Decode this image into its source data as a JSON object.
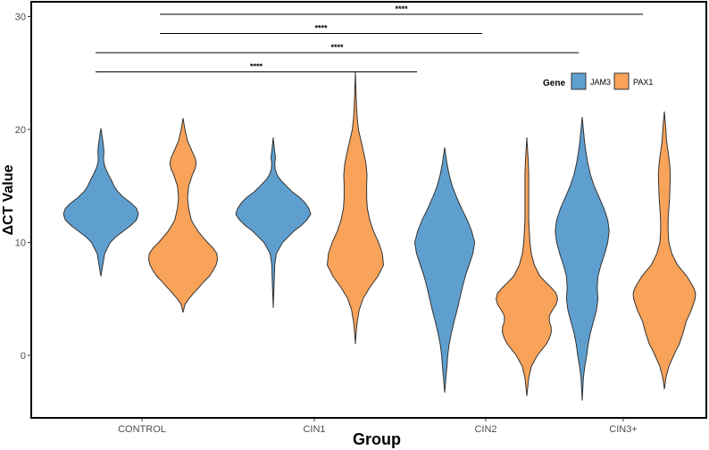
{
  "chart_data": {
    "type": "violin",
    "xlabel": "Group",
    "ylabel": "ΔCT   Value",
    "categories": [
      "CONTROL",
      "CIN1",
      "CIN2",
      "CIN3+"
    ],
    "y_ticks": [
      0,
      10,
      20,
      30
    ],
    "ylim": [
      -5.5,
      31
    ],
    "grid": false,
    "legend": {
      "title": "Gene",
      "position": "top-right"
    },
    "series": [
      {
        "name": "JAM3",
        "color": "#5F9FCF",
        "violins": [
          {
            "category": "CONTROL",
            "min": 7.0,
            "max": 20.1,
            "density": [
              [
                7.0,
                0
              ],
              [
                8.0,
                0.05
              ],
              [
                9.0,
                0.1
              ],
              [
                10.0,
                0.25
              ],
              [
                10.5,
                0.4
              ],
              [
                11.0,
                0.6
              ],
              [
                11.5,
                0.8
              ],
              [
                12.0,
                0.95
              ],
              [
                12.5,
                1.0
              ],
              [
                13.0,
                0.95
              ],
              [
                13.5,
                0.8
              ],
              [
                14.0,
                0.6
              ],
              [
                14.5,
                0.45
              ],
              [
                15.0,
                0.35
              ],
              [
                15.5,
                0.28
              ],
              [
                16.0,
                0.2
              ],
              [
                16.5,
                0.13
              ],
              [
                17.0,
                0.08
              ],
              [
                17.5,
                0.07
              ],
              [
                18.0,
                0.08
              ],
              [
                18.5,
                0.07
              ],
              [
                19.0,
                0.05
              ],
              [
                20.1,
                0
              ]
            ]
          },
          {
            "category": "CIN1",
            "min": 4.2,
            "max": 19.3,
            "density": [
              [
                4.2,
                0
              ],
              [
                6.0,
                0.02
              ],
              [
                8.0,
                0.04
              ],
              [
                9.0,
                0.08
              ],
              [
                10.0,
                0.25
              ],
              [
                10.5,
                0.4
              ],
              [
                11.0,
                0.55
              ],
              [
                11.5,
                0.75
              ],
              [
                12.0,
                0.9
              ],
              [
                12.5,
                1.0
              ],
              [
                13.0,
                0.95
              ],
              [
                13.5,
                0.85
              ],
              [
                14.0,
                0.7
              ],
              [
                14.5,
                0.5
              ],
              [
                15.0,
                0.35
              ],
              [
                15.5,
                0.2
              ],
              [
                16.0,
                0.1
              ],
              [
                16.5,
                0.05
              ],
              [
                17.0,
                0.04
              ],
              [
                17.5,
                0.06
              ],
              [
                18.0,
                0.04
              ],
              [
                19.3,
                0
              ]
            ]
          },
          {
            "category": "CIN2",
            "min": -3.3,
            "max": 18.4,
            "density": [
              [
                -3.3,
                0
              ],
              [
                -2.0,
                0.03
              ],
              [
                -1.0,
                0.06
              ],
              [
                0.0,
                0.08
              ],
              [
                1.0,
                0.12
              ],
              [
                2.0,
                0.18
              ],
              [
                3.0,
                0.25
              ],
              [
                4.0,
                0.33
              ],
              [
                5.0,
                0.4
              ],
              [
                6.0,
                0.47
              ],
              [
                7.0,
                0.55
              ],
              [
                8.0,
                0.65
              ],
              [
                9.0,
                0.75
              ],
              [
                10.0,
                0.8
              ],
              [
                11.0,
                0.72
              ],
              [
                12.0,
                0.6
              ],
              [
                13.0,
                0.45
              ],
              [
                14.0,
                0.32
              ],
              [
                15.0,
                0.2
              ],
              [
                16.0,
                0.12
              ],
              [
                17.0,
                0.06
              ],
              [
                18.4,
                0
              ]
            ]
          },
          {
            "category": "CIN3+",
            "min": -4.0,
            "max": 21.1,
            "density": [
              [
                -4.0,
                0
              ],
              [
                -2.0,
                0.03
              ],
              [
                -1.0,
                0.07
              ],
              [
                0.0,
                0.12
              ],
              [
                1.0,
                0.16
              ],
              [
                2.0,
                0.22
              ],
              [
                3.0,
                0.3
              ],
              [
                4.0,
                0.38
              ],
              [
                5.0,
                0.42
              ],
              [
                6.0,
                0.4
              ],
              [
                7.0,
                0.42
              ],
              [
                8.0,
                0.5
              ],
              [
                9.0,
                0.6
              ],
              [
                10.0,
                0.68
              ],
              [
                11.0,
                0.72
              ],
              [
                12.0,
                0.68
              ],
              [
                13.0,
                0.58
              ],
              [
                14.0,
                0.45
              ],
              [
                15.0,
                0.32
              ],
              [
                16.0,
                0.22
              ],
              [
                17.0,
                0.15
              ],
              [
                18.0,
                0.1
              ],
              [
                19.0,
                0.06
              ],
              [
                20.0,
                0.03
              ],
              [
                21.1,
                0
              ]
            ]
          }
        ]
      },
      {
        "name": "PAX1",
        "color": "#F9A35A",
        "violins": [
          {
            "category": "CONTROL",
            "min": 3.8,
            "max": 21.0,
            "density": [
              [
                3.8,
                0
              ],
              [
                4.5,
                0.05
              ],
              [
                5.0,
                0.15
              ],
              [
                5.5,
                0.28
              ],
              [
                6.0,
                0.42
              ],
              [
                6.5,
                0.55
              ],
              [
                7.0,
                0.7
              ],
              [
                7.5,
                0.8
              ],
              [
                8.0,
                0.88
              ],
              [
                8.5,
                0.92
              ],
              [
                9.0,
                0.9
              ],
              [
                9.5,
                0.8
              ],
              [
                10.0,
                0.65
              ],
              [
                10.5,
                0.52
              ],
              [
                11.0,
                0.4
              ],
              [
                11.5,
                0.3
              ],
              [
                12.0,
                0.22
              ],
              [
                13.0,
                0.15
              ],
              [
                14.0,
                0.12
              ],
              [
                15.0,
                0.15
              ],
              [
                16.0,
                0.25
              ],
              [
                16.5,
                0.32
              ],
              [
                17.0,
                0.35
              ],
              [
                17.5,
                0.32
              ],
              [
                18.0,
                0.25
              ],
              [
                19.0,
                0.12
              ],
              [
                20.0,
                0.05
              ],
              [
                21.0,
                0
              ]
            ]
          },
          {
            "category": "CIN1",
            "min": 1.0,
            "max": 25.1,
            "density": [
              [
                1.0,
                0
              ],
              [
                2.0,
                0.02
              ],
              [
                3.0,
                0.05
              ],
              [
                4.0,
                0.1
              ],
              [
                5.0,
                0.2
              ],
              [
                6.0,
                0.38
              ],
              [
                7.0,
                0.6
              ],
              [
                8.0,
                0.75
              ],
              [
                9.0,
                0.72
              ],
              [
                10.0,
                0.62
              ],
              [
                11.0,
                0.48
              ],
              [
                12.0,
                0.38
              ],
              [
                13.0,
                0.32
              ],
              [
                14.0,
                0.3
              ],
              [
                15.0,
                0.3
              ],
              [
                16.0,
                0.31
              ],
              [
                17.0,
                0.28
              ],
              [
                18.0,
                0.22
              ],
              [
                19.0,
                0.15
              ],
              [
                20.0,
                0.08
              ],
              [
                21.0,
                0.05
              ],
              [
                22.0,
                0.03
              ],
              [
                23.0,
                0.02
              ],
              [
                25.1,
                0
              ]
            ]
          },
          {
            "category": "CIN2",
            "min": -3.6,
            "max": 19.3,
            "density": [
              [
                -3.6,
                0
              ],
              [
                -2.0,
                0.05
              ],
              [
                -1.0,
                0.12
              ],
              [
                0.0,
                0.28
              ],
              [
                0.5,
                0.4
              ],
              [
                1.0,
                0.52
              ],
              [
                1.5,
                0.6
              ],
              [
                2.0,
                0.65
              ],
              [
                2.5,
                0.65
              ],
              [
                3.0,
                0.6
              ],
              [
                3.5,
                0.6
              ],
              [
                4.0,
                0.68
              ],
              [
                4.5,
                0.78
              ],
              [
                5.0,
                0.82
              ],
              [
                5.5,
                0.78
              ],
              [
                6.0,
                0.65
              ],
              [
                6.5,
                0.5
              ],
              [
                7.0,
                0.35
              ],
              [
                8.0,
                0.2
              ],
              [
                9.0,
                0.12
              ],
              [
                10.0,
                0.08
              ],
              [
                12.0,
                0.05
              ],
              [
                14.0,
                0.05
              ],
              [
                16.0,
                0.05
              ],
              [
                17.0,
                0.04
              ],
              [
                19.3,
                0
              ]
            ]
          },
          {
            "category": "CIN3+",
            "min": -3.0,
            "max": 21.6,
            "density": [
              [
                -3.0,
                0
              ],
              [
                -2.0,
                0.04
              ],
              [
                -1.0,
                0.12
              ],
              [
                0.0,
                0.25
              ],
              [
                0.5,
                0.32
              ],
              [
                1.0,
                0.4
              ],
              [
                2.0,
                0.5
              ],
              [
                3.0,
                0.58
              ],
              [
                4.0,
                0.72
              ],
              [
                5.0,
                0.82
              ],
              [
                5.5,
                0.83
              ],
              [
                6.0,
                0.78
              ],
              [
                7.0,
                0.6
              ],
              [
                8.0,
                0.35
              ],
              [
                9.0,
                0.2
              ],
              [
                10.0,
                0.12
              ],
              [
                11.0,
                0.1
              ],
              [
                12.0,
                0.1
              ],
              [
                13.0,
                0.12
              ],
              [
                14.0,
                0.14
              ],
              [
                15.0,
                0.15
              ],
              [
                16.0,
                0.16
              ],
              [
                17.0,
                0.14
              ],
              [
                18.0,
                0.1
              ],
              [
                19.0,
                0.06
              ],
              [
                20.0,
                0.04
              ],
              [
                21.6,
                0
              ]
            ]
          }
        ]
      }
    ],
    "significance": [
      {
        "label": "****",
        "from": "CONTROL",
        "to": "CIN3+",
        "y": 30.2
      },
      {
        "label": "****",
        "from": "CONTROL",
        "to": "CIN2",
        "y": 28.5
      },
      {
        "label": "****",
        "from": "CONTROL",
        "to": "CIN3+",
        "y": 26.8
      },
      {
        "label": "****",
        "from": "CONTROL",
        "to": "CIN2",
        "y": 25.1
      }
    ]
  }
}
